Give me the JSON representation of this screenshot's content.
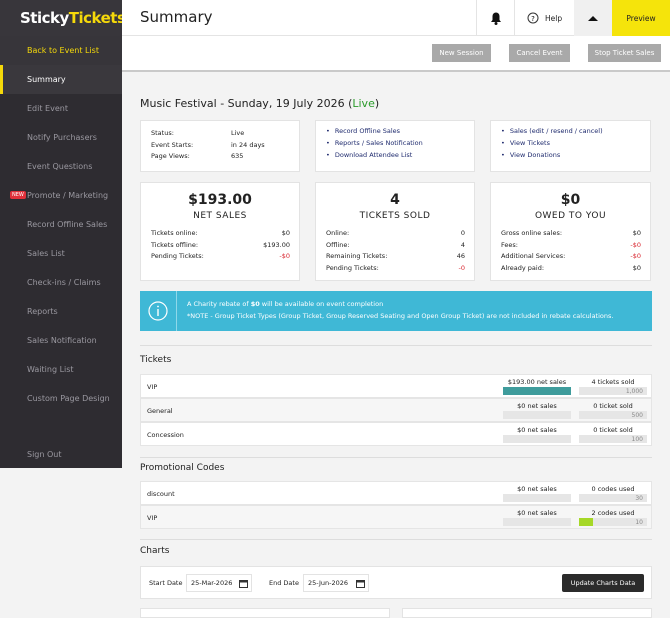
{
  "brand": {
    "sticky": "Sticky",
    "tickets": "Tickets"
  },
  "sidebar": {
    "back": "Back to Event List",
    "items": [
      "Summary",
      "Edit Event",
      "Notify Purchasers",
      "Event Questions",
      "Promote / Marketing",
      "Record Offline Sales",
      "Sales List",
      "Check-ins / Claims",
      "Reports",
      "Sales Notification",
      "Waiting List",
      "Custom Page Design"
    ],
    "badge": "NEW",
    "sign_out": "Sign Out"
  },
  "topbar": {
    "title": "Summary",
    "help": "Help",
    "preview": "Preview"
  },
  "actions": [
    "New Session",
    "Cancel Event",
    "Stop Ticket Sales"
  ],
  "event": {
    "title_prefix": "Music Festival - Sunday, 19 July 2026 (",
    "status": "Live",
    "title_suffix": ")"
  },
  "info": [
    [
      "Status:",
      "Live"
    ],
    [
      "Event Starts:",
      "in 24 days"
    ],
    [
      "Page Views:",
      "635"
    ]
  ],
  "links1": [
    "Record Offline Sales",
    "Reports / Sales Notification",
    "Download Attendee List"
  ],
  "links2": [
    "Sales (edit / resend / cancel)",
    "View Tickets",
    "View Donations"
  ],
  "stats": [
    {
      "amount": "$193.00",
      "label": "NET SALES",
      "rows": [
        [
          "Tickets online:",
          "$0"
        ],
        [
          "Tickets offline:",
          "$193.00"
        ],
        [
          "Pending Tickets:",
          "-$0"
        ]
      ]
    },
    {
      "amount": "4",
      "label": "TICKETS SOLD",
      "rows": [
        [
          "Online:",
          "0"
        ],
        [
          "Offline:",
          "4"
        ],
        [
          "Remaining Tickets:",
          "46"
        ],
        [
          "Pending Tickets:",
          "-0"
        ]
      ]
    },
    {
      "amount": "$0",
      "label": "OWED TO YOU",
      "rows": [
        [
          "Gross online sales:",
          "$0"
        ],
        [
          "Fees:",
          "-$0"
        ],
        [
          "Additional Services:",
          "-$0"
        ],
        [
          "Already paid:",
          "$0"
        ]
      ]
    }
  ],
  "notice": {
    "before": "A Charity rebate of ",
    "amount": "$0",
    "after": " will be available on event completion",
    "note": "*NOTE - Group Ticket Types (Group Ticket, Group Reserved Seating and Open Group Ticket) are not included in rebate calculations."
  },
  "tickets": {
    "heading": "Tickets",
    "rows": [
      {
        "name": "VIP",
        "sales": "$193.00 net sales",
        "sold": "4 tickets sold",
        "cap": "1,000"
      },
      {
        "name": "General",
        "sales": "$0 net sales",
        "sold": "0 ticket sold",
        "cap": "500"
      },
      {
        "name": "Concession",
        "sales": "$0 net sales",
        "sold": "0 ticket sold",
        "cap": "100"
      }
    ]
  },
  "promo": {
    "heading": "Promotional Codes",
    "rows": [
      {
        "name": "discount",
        "sales": "$0 net sales",
        "sold": "0 codes used",
        "cap": "30"
      },
      {
        "name": "VIP",
        "sales": "$0 net sales",
        "sold": "2 codes used",
        "cap": "10"
      }
    ]
  },
  "charts": {
    "heading": "Charts",
    "start_label": "Start Date",
    "start": "25-Mar-2026",
    "end_label": "End Date",
    "end": "25-Jun-2026",
    "button": "Update Charts Data"
  }
}
